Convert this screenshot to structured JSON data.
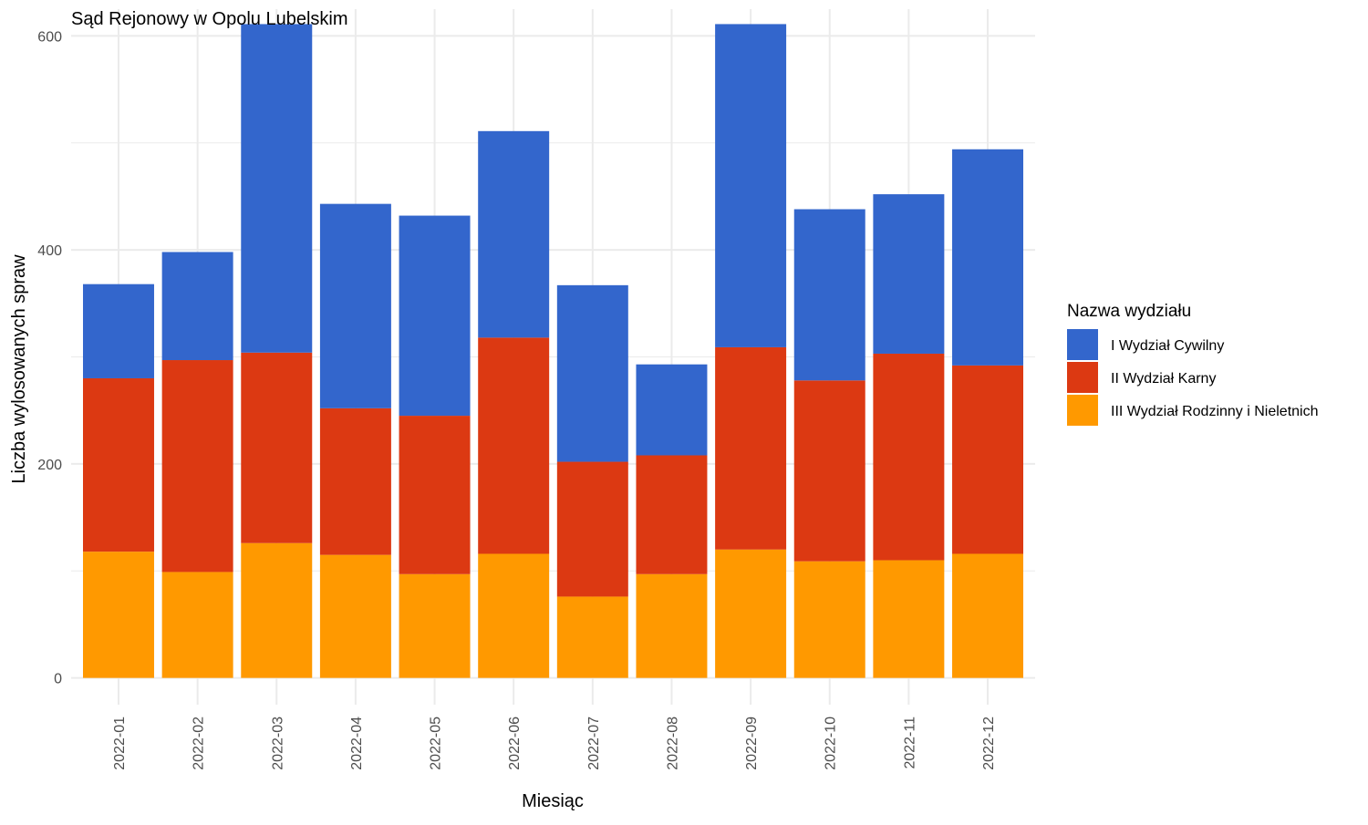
{
  "chart_data": {
    "type": "bar",
    "stacked": true,
    "title": "Sąd Rejonowy w Opolu Lubelskim",
    "xlabel": "Miesiąc",
    "ylabel": "Liczba wylosowanych spraw",
    "ylim": [
      -25,
      625
    ],
    "yticks": [
      0,
      200,
      400,
      600
    ],
    "grid": true,
    "legend_position": "right",
    "legend_title": "Nazwa wydziału",
    "categories": [
      "2022-01",
      "2022-02",
      "2022-03",
      "2022-04",
      "2022-05",
      "2022-06",
      "2022-07",
      "2022-08",
      "2022-09",
      "2022-10",
      "2022-11",
      "2022-12"
    ],
    "series": [
      {
        "name": "I Wydział Cywilny",
        "color": "#3366CC",
        "values": [
          88,
          101,
          307,
          191,
          187,
          193,
          165,
          85,
          302,
          160,
          149,
          202
        ]
      },
      {
        "name": "II Wydział Karny",
        "color": "#DC3912",
        "values": [
          162,
          198,
          178,
          137,
          148,
          202,
          126,
          111,
          189,
          169,
          193,
          176
        ]
      },
      {
        "name": "III Wydział Rodzinny i Nieletnich",
        "color": "#FF9900",
        "values": [
          118,
          99,
          126,
          115,
          97,
          116,
          76,
          97,
          120,
          109,
          110,
          116
        ]
      }
    ]
  }
}
